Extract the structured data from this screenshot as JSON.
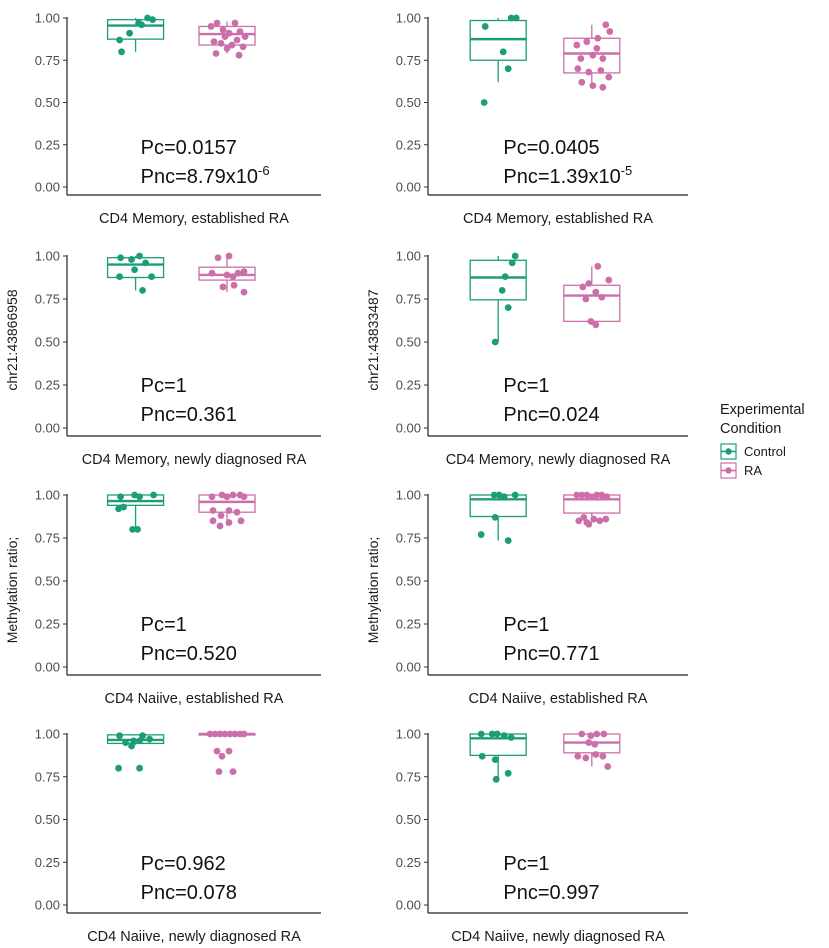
{
  "chart_data": {
    "type": "boxplot",
    "layout": "4x2 grid",
    "y_range": [
      0,
      1
    ],
    "y_ticks": [
      "0.00",
      "0.25",
      "0.50",
      "0.75",
      "1.00"
    ],
    "y_labels": {
      "left": "Methylation ratio;",
      "left_extra": "chr21:43866958",
      "right": "Methylation ratio;",
      "right_extra": "chr21:43833487"
    },
    "legend": {
      "title_line1": "Experimental",
      "title_line2": "Condition",
      "entries": [
        {
          "label": "Control",
          "color": "#1b9e77"
        },
        {
          "label": "RA",
          "color": "#cc6fa9"
        }
      ]
    },
    "panels": [
      {
        "xlabel": "CD4 Memory, established RA",
        "annotation": {
          "pc": "Pc=0.0157",
          "pnc_base": "Pnc=8.79x10",
          "pnc_exp": "-6"
        },
        "groups": [
          {
            "name": "Control",
            "q1": 0.875,
            "median": 0.955,
            "q3": 0.99,
            "wlo": 0.8,
            "whi": 1.0,
            "points": [
              [
                -14,
                0.8
              ],
              [
                -16,
                0.87
              ],
              [
                -6,
                0.91
              ],
              [
                6,
                0.96
              ],
              [
                12,
                1.0
              ],
              [
                17,
                0.99
              ],
              [
                3,
                0.97
              ]
            ]
          },
          {
            "name": "RA",
            "q1": 0.84,
            "median": 0.905,
            "q3": 0.95,
            "wlo": 0.79,
            "whi": 0.98,
            "points": [
              [
                -16,
                0.95
              ],
              [
                -10,
                0.97
              ],
              [
                -4,
                0.93
              ],
              [
                2,
                0.91
              ],
              [
                8,
                0.97
              ],
              [
                13,
                0.92
              ],
              [
                18,
                0.89
              ],
              [
                -13,
                0.86
              ],
              [
                -6,
                0.85
              ],
              [
                5,
                0.84
              ],
              [
                10,
                0.87
              ],
              [
                16,
                0.83
              ],
              [
                -11,
                0.79
              ],
              [
                0,
                0.82
              ],
              [
                12,
                0.78
              ],
              [
                -2,
                0.89
              ]
            ]
          }
        ]
      },
      {
        "xlabel": "CD4 Memory, established RA",
        "annotation": {
          "pc": "Pc=0.0405",
          "pnc_base": "Pnc=1.39x10",
          "pnc_exp": "-5"
        },
        "groups": [
          {
            "name": "Control",
            "q1": 0.75,
            "median": 0.875,
            "q3": 0.985,
            "wlo": 0.62,
            "whi": 1.0,
            "points": [
              [
                -13,
                0.95
              ],
              [
                13,
                1.0
              ],
              [
                18,
                1.0
              ],
              [
                5,
                0.8
              ],
              [
                10,
                0.7
              ],
              [
                -14,
                0.5
              ]
            ]
          },
          {
            "name": "RA",
            "q1": 0.675,
            "median": 0.79,
            "q3": 0.88,
            "wlo": 0.6,
            "whi": 0.96,
            "points": [
              [
                -15,
                0.84
              ],
              [
                -5,
                0.86
              ],
              [
                6,
                0.88
              ],
              [
                14,
                0.96
              ],
              [
                18,
                0.92
              ],
              [
                -11,
                0.76
              ],
              [
                1,
                0.78
              ],
              [
                11,
                0.76
              ],
              [
                -14,
                0.7
              ],
              [
                -3,
                0.68
              ],
              [
                9,
                0.69
              ],
              [
                17,
                0.65
              ],
              [
                -10,
                0.62
              ],
              [
                1,
                0.6
              ],
              [
                11,
                0.59
              ],
              [
                5,
                0.82
              ]
            ]
          }
        ]
      },
      {
        "xlabel": "CD4 Memory, newly diagnosed RA",
        "annotation": {
          "pc": "Pc=1",
          "pnc_base": "Pnc=0.361",
          "pnc_exp": ""
        },
        "groups": [
          {
            "name": "Control",
            "q1": 0.875,
            "median": 0.95,
            "q3": 0.99,
            "wlo": 0.8,
            "whi": 1.0,
            "points": [
              [
                -15,
                0.99
              ],
              [
                -4,
                0.98
              ],
              [
                4,
                1.0
              ],
              [
                -16,
                0.88
              ],
              [
                10,
                0.96
              ],
              [
                16,
                0.88
              ],
              [
                7,
                0.8
              ],
              [
                -1,
                0.92
              ]
            ]
          },
          {
            "name": "RA",
            "q1": 0.86,
            "median": 0.89,
            "q3": 0.935,
            "wlo": 0.79,
            "whi": 1.0,
            "points": [
              [
                -9,
                0.99
              ],
              [
                2,
                1.0
              ],
              [
                -15,
                0.9
              ],
              [
                0,
                0.89
              ],
              [
                6,
                0.88
              ],
              [
                11,
                0.9
              ],
              [
                17,
                0.91
              ],
              [
                -4,
                0.82
              ],
              [
                7,
                0.83
              ],
              [
                17,
                0.79
              ]
            ]
          }
        ]
      },
      {
        "xlabel": "CD4 Memory, newly diagnosed RA",
        "annotation": {
          "pc": "Pc=1",
          "pnc_base": "Pnc=0.024",
          "pnc_exp": ""
        },
        "groups": [
          {
            "name": "Control",
            "q1": 0.745,
            "median": 0.875,
            "q3": 0.975,
            "wlo": 0.5,
            "whi": 1.0,
            "points": [
              [
                17,
                1.0
              ],
              [
                14,
                0.96
              ],
              [
                7,
                0.88
              ],
              [
                4,
                0.8
              ],
              [
                10,
                0.7
              ],
              [
                -3,
                0.5
              ]
            ]
          },
          {
            "name": "RA",
            "q1": 0.62,
            "median": 0.77,
            "q3": 0.83,
            "wlo": 0.6,
            "whi": 0.94,
            "points": [
              [
                6,
                0.94
              ],
              [
                -9,
                0.82
              ],
              [
                -3,
                0.84
              ],
              [
                4,
                0.79
              ],
              [
                17,
                0.86
              ],
              [
                -6,
                0.75
              ],
              [
                10,
                0.76
              ],
              [
                -1,
                0.62
              ],
              [
                4,
                0.6
              ]
            ]
          }
        ]
      },
      {
        "xlabel": "CD4 Naiive, established RA",
        "annotation": {
          "pc": "Pc=1",
          "pnc_base": "Pnc=0.520",
          "pnc_exp": ""
        },
        "groups": [
          {
            "name": "Control",
            "q1": 0.94,
            "median": 0.965,
            "q3": 1.0,
            "wlo": 0.8,
            "whi": 1.0,
            "points": [
              [
                -15,
                0.99
              ],
              [
                -1,
                1.0
              ],
              [
                4,
                0.99
              ],
              [
                18,
                1.0
              ],
              [
                -17,
                0.92
              ],
              [
                -12,
                0.93
              ],
              [
                -3,
                0.8
              ],
              [
                2,
                0.8
              ]
            ]
          },
          {
            "name": "RA",
            "q1": 0.9,
            "median": 0.96,
            "q3": 1.0,
            "wlo": 0.82,
            "whi": 1.0,
            "points": [
              [
                -15,
                0.99
              ],
              [
                -5,
                1.0
              ],
              [
                0,
                0.99
              ],
              [
                6,
                1.0
              ],
              [
                13,
                1.0
              ],
              [
                17,
                0.99
              ],
              [
                -14,
                0.91
              ],
              [
                -6,
                0.88
              ],
              [
                2,
                0.91
              ],
              [
                10,
                0.9
              ],
              [
                -14,
                0.85
              ],
              [
                -7,
                0.82
              ],
              [
                2,
                0.84
              ],
              [
                14,
                0.85
              ]
            ]
          }
        ]
      },
      {
        "xlabel": "CD4 Naiive, established RA",
        "annotation": {
          "pc": "Pc=1",
          "pnc_base": "Pnc=0.771",
          "pnc_exp": ""
        },
        "groups": [
          {
            "name": "Control",
            "q1": 0.875,
            "median": 0.975,
            "q3": 1.0,
            "wlo": 0.735,
            "whi": 1.0,
            "points": [
              [
                -4,
                1.0
              ],
              [
                1,
                1.0
              ],
              [
                6,
                0.99
              ],
              [
                17,
                1.0
              ],
              [
                -3,
                0.87
              ],
              [
                -17,
                0.77
              ],
              [
                10,
                0.735
              ]
            ]
          },
          {
            "name": "RA",
            "q1": 0.895,
            "median": 0.975,
            "q3": 1.0,
            "wlo": 0.84,
            "whi": 1.0,
            "points": [
              [
                -15,
                1.0
              ],
              [
                -10,
                1.0
              ],
              [
                -5,
                1.0
              ],
              [
                0,
                0.99
              ],
              [
                5,
                1.0
              ],
              [
                10,
                1.0
              ],
              [
                15,
                0.99
              ],
              [
                -13,
                0.85
              ],
              [
                -8,
                0.87
              ],
              [
                -3,
                0.83
              ],
              [
                2,
                0.86
              ],
              [
                8,
                0.85
              ],
              [
                14,
                0.86
              ],
              [
                -5,
                0.84
              ]
            ]
          }
        ]
      },
      {
        "xlabel": "CD4 Naiive, newly diagnosed RA",
        "annotation": {
          "pc": "Pc=0.962",
          "pnc_base": "Pnc=0.078",
          "pnc_exp": ""
        },
        "groups": [
          {
            "name": "Control",
            "q1": 0.945,
            "median": 0.965,
            "q3": 0.995,
            "wlo": 0.935,
            "whi": 1.0,
            "points": [
              [
                -16,
                0.99
              ],
              [
                7,
                0.99
              ],
              [
                14,
                0.97
              ],
              [
                -10,
                0.95
              ],
              [
                -2,
                0.96
              ],
              [
                4,
                0.96
              ],
              [
                -4,
                0.93
              ],
              [
                -17,
                0.8
              ],
              [
                4,
                0.8
              ]
            ]
          },
          {
            "name": "RA",
            "q1": 0.995,
            "median": 1.0,
            "q3": 1.0,
            "wlo": 1.0,
            "whi": 1.0,
            "points": [
              [
                -17,
                1.0
              ],
              [
                -12,
                1.0
              ],
              [
                -7,
                1.0
              ],
              [
                -2,
                1.0
              ],
              [
                3,
                1.0
              ],
              [
                8,
                1.0
              ],
              [
                13,
                1.0
              ],
              [
                17,
                1.0
              ],
              [
                -10,
                0.9
              ],
              [
                -5,
                0.87
              ],
              [
                2,
                0.9
              ],
              [
                -8,
                0.78
              ],
              [
                6,
                0.78
              ]
            ]
          }
        ]
      },
      {
        "xlabel": "CD4 Naiive, newly diagnosed RA",
        "annotation": {
          "pc": "Pc=1",
          "pnc_base": "Pnc=0.997",
          "pnc_exp": ""
        },
        "groups": [
          {
            "name": "Control",
            "q1": 0.875,
            "median": 0.975,
            "q3": 1.0,
            "wlo": 0.735,
            "whi": 1.0,
            "points": [
              [
                -17,
                1.0
              ],
              [
                -6,
                1.0
              ],
              [
                -1,
                1.0
              ],
              [
                6,
                0.99
              ],
              [
                13,
                0.98
              ],
              [
                -16,
                0.87
              ],
              [
                -3,
                0.85
              ],
              [
                10,
                0.77
              ],
              [
                -2,
                0.735
              ]
            ]
          },
          {
            "name": "RA",
            "q1": 0.89,
            "median": 0.95,
            "q3": 1.0,
            "wlo": 0.81,
            "whi": 1.0,
            "points": [
              [
                -10,
                1.0
              ],
              [
                -1,
                0.99
              ],
              [
                5,
                1.0
              ],
              [
                12,
                1.0
              ],
              [
                -3,
                0.95
              ],
              [
                3,
                0.94
              ],
              [
                -14,
                0.87
              ],
              [
                -6,
                0.86
              ],
              [
                4,
                0.88
              ],
              [
                11,
                0.87
              ],
              [
                16,
                0.81
              ]
            ]
          }
        ]
      }
    ]
  }
}
